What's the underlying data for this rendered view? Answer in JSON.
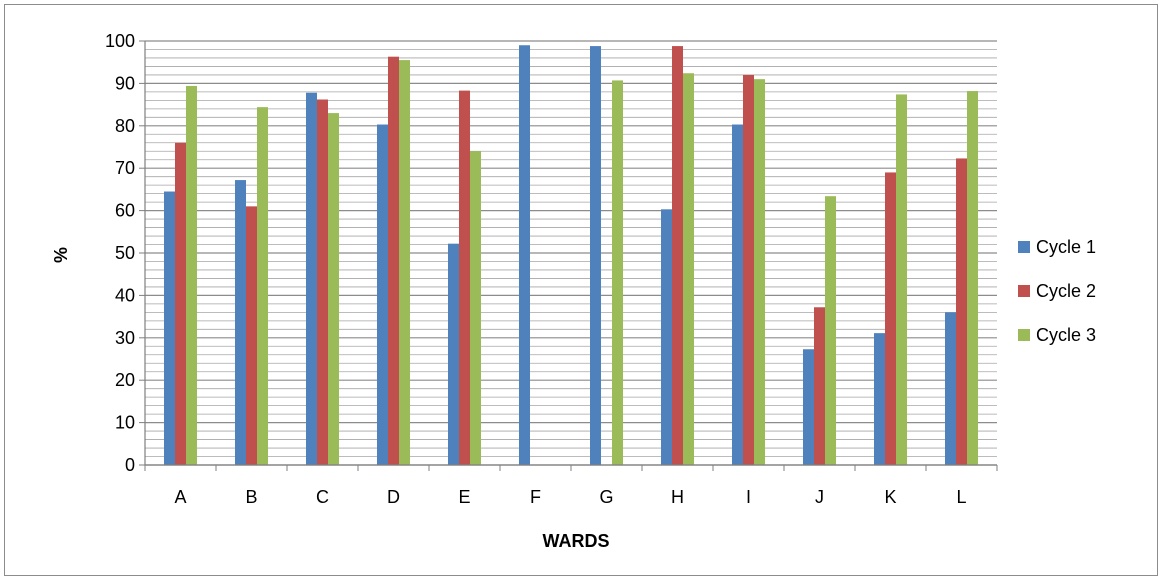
{
  "chart_data": {
    "type": "bar",
    "xlabel": "WARDS",
    "ylabel": "%",
    "ylim": [
      0,
      100
    ],
    "yticks": [
      0,
      10,
      20,
      30,
      40,
      50,
      60,
      70,
      80,
      90,
      100
    ],
    "grid": true,
    "legend_position": "right",
    "categories": [
      "A",
      "B",
      "C",
      "D",
      "E",
      "F",
      "G",
      "H",
      "I",
      "J",
      "K",
      "L"
    ],
    "series": [
      {
        "name": "Cycle 1",
        "color": "#4f81bd",
        "values": [
          64.5,
          67.2,
          87.8,
          80.3,
          52.2,
          99.0,
          98.8,
          60.3,
          80.3,
          27.3,
          31.1,
          36.0
        ]
      },
      {
        "name": "Cycle 2",
        "color": "#c0504d",
        "values": [
          76.0,
          61.0,
          86.2,
          96.3,
          88.3,
          null,
          null,
          98.8,
          92.0,
          37.2,
          69.0,
          72.3
        ]
      },
      {
        "name": "Cycle 3",
        "color": "#9bbb59",
        "values": [
          89.4,
          84.4,
          83.0,
          95.5,
          74.0,
          null,
          90.7,
          92.4,
          91.0,
          63.4,
          87.4,
          88.2
        ]
      }
    ]
  }
}
